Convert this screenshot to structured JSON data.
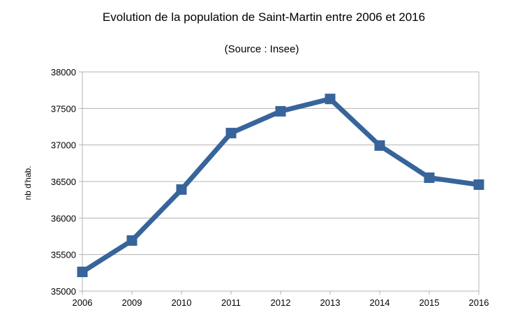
{
  "chart_data": {
    "type": "line",
    "title": "Evolution de la population de Saint-Martin entre 2006 et 2016",
    "subtitle": "(Source : Insee)",
    "xlabel": "",
    "ylabel": "nb d'hab.",
    "categories": [
      "2006",
      "2009",
      "2010",
      "2011",
      "2012",
      "2013",
      "2014",
      "2015",
      "2016"
    ],
    "series": [
      {
        "values": [
          35263,
          35692,
          36390,
          37163,
          37461,
          37630,
          36992,
          36552,
          36457
        ]
      }
    ],
    "ylim": [
      35000,
      38000
    ],
    "yticks": [
      "35000",
      "35500",
      "36000",
      "36500",
      "37000",
      "37500",
      "38000"
    ],
    "grid": true,
    "legend": "none",
    "colors": {
      "series": "#37649b",
      "grid": "#b3b3b3"
    }
  }
}
